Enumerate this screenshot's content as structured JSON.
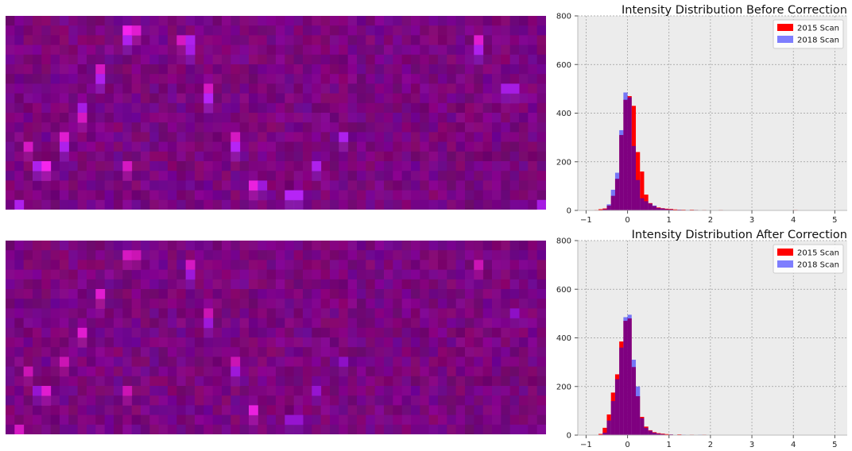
{
  "chart_data": [
    {
      "type": "heatmap",
      "title": "",
      "columns": 60,
      "rows": 20,
      "base_color": "#780078",
      "hot_spots": [
        {
          "col": 13,
          "row": 1,
          "value": 0.9,
          "hue": "magenta"
        },
        {
          "col": 14,
          "row": 1,
          "value": 0.7,
          "hue": "magenta"
        },
        {
          "col": 13,
          "row": 2,
          "value": 0.8,
          "hue": "violet"
        },
        {
          "col": 19,
          "row": 2,
          "value": 0.6,
          "hue": "magenta"
        },
        {
          "col": 20,
          "row": 2,
          "value": 0.8,
          "hue": "violet"
        },
        {
          "col": 20,
          "row": 3,
          "value": 0.7,
          "hue": "violet"
        },
        {
          "col": 52,
          "row": 2,
          "value": 0.7,
          "hue": "magenta"
        },
        {
          "col": 52,
          "row": 3,
          "value": 0.8,
          "hue": "violet"
        },
        {
          "col": 10,
          "row": 5,
          "value": 0.6,
          "hue": "magenta"
        },
        {
          "col": 10,
          "row": 6,
          "value": 0.8,
          "hue": "violet"
        },
        {
          "col": 22,
          "row": 7,
          "value": 0.6,
          "hue": "magenta"
        },
        {
          "col": 22,
          "row": 8,
          "value": 0.9,
          "hue": "violet"
        },
        {
          "col": 55,
          "row": 7,
          "value": 0.7,
          "hue": "violet"
        },
        {
          "col": 56,
          "row": 7,
          "value": 0.7,
          "hue": "violet"
        },
        {
          "col": 8,
          "row": 9,
          "value": 0.7,
          "hue": "violet"
        },
        {
          "col": 8,
          "row": 10,
          "value": 0.6,
          "hue": "magenta"
        },
        {
          "col": 6,
          "row": 12,
          "value": 0.7,
          "hue": "magenta"
        },
        {
          "col": 6,
          "row": 13,
          "value": 0.8,
          "hue": "violet"
        },
        {
          "col": 25,
          "row": 12,
          "value": 0.6,
          "hue": "magenta"
        },
        {
          "col": 25,
          "row": 13,
          "value": 0.9,
          "hue": "violet"
        },
        {
          "col": 37,
          "row": 12,
          "value": 0.8,
          "hue": "violet"
        },
        {
          "col": 2,
          "row": 13,
          "value": 0.6,
          "hue": "magenta"
        },
        {
          "col": 3,
          "row": 15,
          "value": 0.8,
          "hue": "violet"
        },
        {
          "col": 4,
          "row": 15,
          "value": 0.9,
          "hue": "magenta"
        },
        {
          "col": 13,
          "row": 15,
          "value": 0.6,
          "hue": "magenta"
        },
        {
          "col": 34,
          "row": 15,
          "value": 0.8,
          "hue": "violet"
        },
        {
          "col": 27,
          "row": 17,
          "value": 0.8,
          "hue": "magenta"
        },
        {
          "col": 28,
          "row": 17,
          "value": 0.6,
          "hue": "violet"
        },
        {
          "col": 31,
          "row": 18,
          "value": 0.9,
          "hue": "violet"
        },
        {
          "col": 32,
          "row": 18,
          "value": 0.9,
          "hue": "violet"
        },
        {
          "col": 1,
          "row": 19,
          "value": 0.8,
          "hue": "violet"
        },
        {
          "col": 59,
          "row": 19,
          "value": 0.7,
          "hue": "violet"
        }
      ]
    },
    {
      "type": "bar",
      "title": "Intensity Distribution Before Correction",
      "xlim": [
        -1.2,
        5.3
      ],
      "ylim": [
        0,
        800
      ],
      "xticks": [
        -1,
        0,
        1,
        2,
        3,
        4,
        5
      ],
      "yticks": [
        0,
        200,
        400,
        600,
        800
      ],
      "grid": true,
      "legend": "top-right",
      "bin_width": 0.1,
      "series": [
        {
          "name": "2015 Scan",
          "color": "#ff0000",
          "opacity": 1.0,
          "bins": [
            [
              -0.8,
              2
            ],
            [
              -0.7,
              5
            ],
            [
              -0.6,
              8
            ],
            [
              -0.5,
              20
            ],
            [
              -0.4,
              60
            ],
            [
              -0.3,
              130
            ],
            [
              -0.2,
              310
            ],
            [
              -0.1,
              455
            ],
            [
              0.0,
              470
            ],
            [
              0.1,
              430
            ],
            [
              0.2,
              240
            ],
            [
              0.3,
              160
            ],
            [
              0.4,
              65
            ],
            [
              0.5,
              30
            ],
            [
              0.6,
              18
            ],
            [
              0.7,
              12
            ],
            [
              0.8,
              9
            ],
            [
              0.9,
              7
            ],
            [
              1.0,
              6
            ],
            [
              1.1,
              4
            ],
            [
              1.2,
              3
            ],
            [
              1.3,
              3
            ],
            [
              1.5,
              3
            ],
            [
              1.6,
              2
            ],
            [
              1.8,
              2
            ],
            [
              2.2,
              2
            ],
            [
              2.6,
              1
            ],
            [
              3.0,
              1
            ],
            [
              3.5,
              1
            ],
            [
              4.0,
              2
            ],
            [
              4.3,
              1
            ]
          ]
        },
        {
          "name": "2018 Scan",
          "color": "#0000ff",
          "opacity": 0.5,
          "bins": [
            [
              -0.6,
              5
            ],
            [
              -0.5,
              25
            ],
            [
              -0.4,
              85
            ],
            [
              -0.3,
              155
            ],
            [
              -0.2,
              330
            ],
            [
              -0.1,
              485
            ],
            [
              0.0,
              465
            ],
            [
              0.1,
              265
            ],
            [
              0.2,
              125
            ],
            [
              0.3,
              50
            ],
            [
              0.4,
              38
            ],
            [
              0.5,
              28
            ],
            [
              0.6,
              20
            ],
            [
              0.7,
              10
            ],
            [
              0.8,
              8
            ],
            [
              0.9,
              5
            ],
            [
              1.0,
              4
            ],
            [
              1.2,
              3
            ],
            [
              1.4,
              2
            ],
            [
              1.6,
              2
            ],
            [
              1.9,
              1
            ],
            [
              2.3,
              1
            ],
            [
              2.8,
              1
            ],
            [
              3.2,
              1
            ],
            [
              3.9,
              1
            ]
          ]
        }
      ]
    },
    {
      "type": "heatmap",
      "title": "",
      "columns": 60,
      "rows": 20,
      "base_color": "#78006e",
      "hot_spots": [
        {
          "col": 13,
          "row": 1,
          "value": 0.6,
          "hue": "magenta"
        },
        {
          "col": 14,
          "row": 1,
          "value": 0.5,
          "hue": "magenta"
        },
        {
          "col": 20,
          "row": 2,
          "value": 0.6,
          "hue": "magenta"
        },
        {
          "col": 20,
          "row": 3,
          "value": 0.6,
          "hue": "violet"
        },
        {
          "col": 52,
          "row": 2,
          "value": 0.5,
          "hue": "magenta"
        },
        {
          "col": 10,
          "row": 5,
          "value": 0.7,
          "hue": "magenta"
        },
        {
          "col": 22,
          "row": 7,
          "value": 0.5,
          "hue": "magenta"
        },
        {
          "col": 22,
          "row": 8,
          "value": 0.6,
          "hue": "violet"
        },
        {
          "col": 56,
          "row": 7,
          "value": 0.4,
          "hue": "violet"
        },
        {
          "col": 8,
          "row": 9,
          "value": 0.7,
          "hue": "magenta"
        },
        {
          "col": 6,
          "row": 12,
          "value": 0.5,
          "hue": "magenta"
        },
        {
          "col": 25,
          "row": 12,
          "value": 0.5,
          "hue": "magenta"
        },
        {
          "col": 25,
          "row": 13,
          "value": 0.6,
          "hue": "violet"
        },
        {
          "col": 37,
          "row": 12,
          "value": 0.4,
          "hue": "violet"
        },
        {
          "col": 2,
          "row": 13,
          "value": 0.5,
          "hue": "magenta"
        },
        {
          "col": 3,
          "row": 15,
          "value": 0.5,
          "hue": "violet"
        },
        {
          "col": 4,
          "row": 15,
          "value": 0.7,
          "hue": "magenta"
        },
        {
          "col": 13,
          "row": 15,
          "value": 0.5,
          "hue": "magenta"
        },
        {
          "col": 34,
          "row": 15,
          "value": 0.5,
          "hue": "violet"
        },
        {
          "col": 27,
          "row": 17,
          "value": 0.8,
          "hue": "magenta"
        },
        {
          "col": 31,
          "row": 18,
          "value": 0.5,
          "hue": "violet"
        },
        {
          "col": 32,
          "row": 18,
          "value": 0.5,
          "hue": "violet"
        },
        {
          "col": 1,
          "row": 19,
          "value": 0.6,
          "hue": "magenta"
        }
      ]
    },
    {
      "type": "bar",
      "title": "Intensity Distribution After Correction",
      "xlim": [
        -1.2,
        5.3
      ],
      "ylim": [
        0,
        800
      ],
      "xticks": [
        -1,
        0,
        1,
        2,
        3,
        4,
        5
      ],
      "yticks": [
        0,
        200,
        400,
        600,
        800
      ],
      "grid": true,
      "legend": "top-right",
      "bin_width": 0.1,
      "series": [
        {
          "name": "2015 Scan",
          "color": "#ff0000",
          "opacity": 1.0,
          "bins": [
            [
              -0.7,
              5
            ],
            [
              -0.6,
              30
            ],
            [
              -0.5,
              85
            ],
            [
              -0.4,
              175
            ],
            [
              -0.3,
              250
            ],
            [
              -0.2,
              385
            ],
            [
              -0.1,
              470
            ],
            [
              0.0,
              480
            ],
            [
              0.1,
              280
            ],
            [
              0.2,
              160
            ],
            [
              0.3,
              75
            ],
            [
              0.4,
              35
            ],
            [
              0.5,
              20
            ],
            [
              0.6,
              12
            ],
            [
              0.7,
              8
            ],
            [
              0.8,
              6
            ],
            [
              0.9,
              4
            ],
            [
              1.0,
              3
            ],
            [
              1.2,
              3
            ],
            [
              1.5,
              2
            ],
            [
              1.8,
              2
            ],
            [
              2.0,
              1
            ]
          ]
        },
        {
          "name": "2018 Scan",
          "color": "#0000ff",
          "opacity": 0.5,
          "bins": [
            [
              -0.6,
              10
            ],
            [
              -0.5,
              60
            ],
            [
              -0.4,
              140
            ],
            [
              -0.3,
              230
            ],
            [
              -0.2,
              360
            ],
            [
              -0.1,
              485
            ],
            [
              0.0,
              495
            ],
            [
              0.1,
              310
            ],
            [
              0.2,
              200
            ],
            [
              0.3,
              70
            ],
            [
              0.4,
              30
            ],
            [
              0.5,
              18
            ],
            [
              0.6,
              10
            ],
            [
              0.7,
              6
            ],
            [
              0.8,
              4
            ],
            [
              1.0,
              3
            ],
            [
              1.3,
              2
            ],
            [
              1.7,
              2
            ],
            [
              2.3,
              1
            ]
          ]
        }
      ]
    }
  ]
}
